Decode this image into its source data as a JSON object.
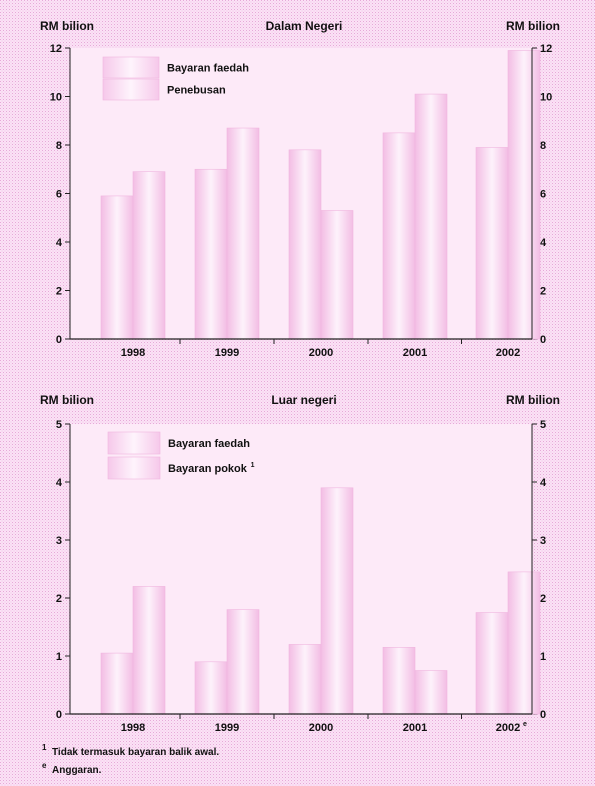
{
  "chart_data": [
    {
      "type": "bar",
      "title": "Dalam Negeri",
      "ylabel_left": "RM bilion",
      "ylabel_right": "RM bilion",
      "categories": [
        "1998",
        "1999",
        "2000",
        "2001",
        "2002"
      ],
      "series": [
        {
          "name": "Bayaran faedah",
          "values": [
            5.9,
            7.0,
            7.8,
            8.5,
            7.9
          ]
        },
        {
          "name": "Penebusan",
          "values": [
            6.9,
            8.7,
            5.3,
            10.1,
            11.9
          ]
        }
      ],
      "ylim": [
        0,
        12
      ],
      "yticks": [
        "0",
        "2",
        "4",
        "6",
        "8",
        "10",
        "12"
      ],
      "legend_position": "top-left",
      "grid": false
    },
    {
      "type": "bar",
      "title": "Luar negeri",
      "ylabel_left": "RM bilion",
      "ylabel_right": "RM bilion",
      "categories": [
        "1998",
        "1999",
        "2000",
        "2001",
        "2002"
      ],
      "category_marks": [
        "",
        "",
        "",
        "",
        "e"
      ],
      "series": [
        {
          "name": "Bayaran faedah",
          "values": [
            1.05,
            0.9,
            1.2,
            1.15,
            1.75
          ]
        },
        {
          "name": "Bayaran pokok",
          "name_mark": "1",
          "values": [
            2.2,
            1.8,
            3.9,
            0.75,
            2.45
          ]
        }
      ],
      "ylim": [
        0,
        5
      ],
      "yticks": [
        "0",
        "1",
        "2",
        "3",
        "4",
        "5"
      ],
      "legend_position": "top-left",
      "grid": false
    }
  ],
  "footnotes": [
    {
      "mark": "1",
      "text": "Tidak termasuk bayaran balik awal."
    },
    {
      "mark": "e",
      "text": "Anggaran."
    }
  ],
  "colors": {
    "background_dots": "#eab4df",
    "panel": "#fdeaf8",
    "bar_edge": "#f4c0e6",
    "bar_center": "#fdf1fa",
    "axis": "#222222"
  }
}
